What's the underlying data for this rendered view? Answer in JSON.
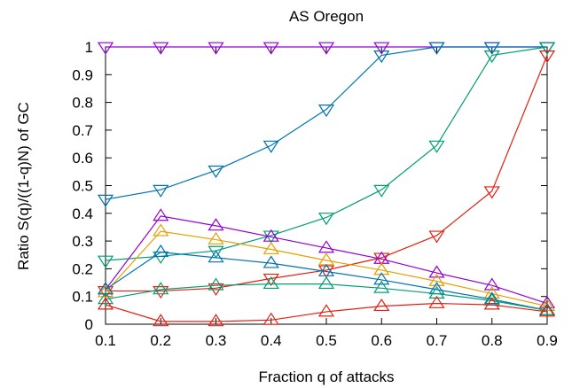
{
  "chart_data": {
    "type": "line",
    "title": "AS Oregon",
    "xlabel": "Fraction q of attacks",
    "ylabel": "Ratio S(q)/((1-q)N) of GC",
    "xlim": [
      0.1,
      0.9
    ],
    "ylim": [
      0,
      1
    ],
    "xticks": [
      "0.1",
      "0.2",
      "0.3",
      "0.4",
      "0.5",
      "0.6",
      "0.7",
      "0.8",
      "0.9"
    ],
    "yticks": [
      "0",
      "0.1",
      "0.2",
      "0.3",
      "0.4",
      "0.5",
      "0.6",
      "0.7",
      "0.8",
      "0.9",
      "1"
    ],
    "grid": false,
    "legend": "none",
    "x": [
      0.1,
      0.2,
      0.3,
      0.4,
      0.5,
      0.6,
      0.7,
      0.8,
      0.9
    ],
    "series": [
      {
        "color": "#9400d3",
        "marker": "triangle-down",
        "values": [
          1.0,
          1.0,
          1.0,
          1.0,
          1.0,
          1.0,
          1.0,
          1.0,
          1.0
        ]
      },
      {
        "color": "#0072b2",
        "marker": "triangle-down",
        "values": [
          0.45,
          0.485,
          0.555,
          0.645,
          0.775,
          0.97,
          1.0,
          1.0,
          1.0
        ]
      },
      {
        "color": "#009e73",
        "marker": "triangle-down",
        "values": [
          0.23,
          0.245,
          0.265,
          0.32,
          0.385,
          0.485,
          0.645,
          0.97,
          1.0
        ]
      },
      {
        "color": "#e51e10",
        "marker": "triangle-down",
        "values": [
          0.12,
          0.12,
          0.13,
          0.165,
          0.195,
          0.24,
          0.32,
          0.48,
          0.97
        ]
      },
      {
        "color": "#9400d3",
        "marker": "triangle-up",
        "values": [
          0.125,
          0.39,
          0.355,
          0.315,
          0.275,
          0.235,
          0.185,
          0.14,
          0.075
        ]
      },
      {
        "color": "#e69f00",
        "marker": "triangle-up",
        "values": [
          0.115,
          0.335,
          0.305,
          0.27,
          0.23,
          0.195,
          0.155,
          0.11,
          0.065
        ]
      },
      {
        "color": "#0072b2",
        "marker": "triangle-up",
        "values": [
          0.125,
          0.26,
          0.24,
          0.22,
          0.19,
          0.16,
          0.125,
          0.09,
          0.05
        ]
      },
      {
        "color": "#009e73",
        "marker": "triangle-up",
        "values": [
          0.09,
          0.125,
          0.14,
          0.145,
          0.145,
          0.13,
          0.11,
          0.085,
          0.05
        ]
      },
      {
        "color": "#e51e10",
        "marker": "triangle-up",
        "values": [
          0.07,
          0.01,
          0.01,
          0.015,
          0.045,
          0.065,
          0.075,
          0.07,
          0.045
        ]
      }
    ]
  }
}
